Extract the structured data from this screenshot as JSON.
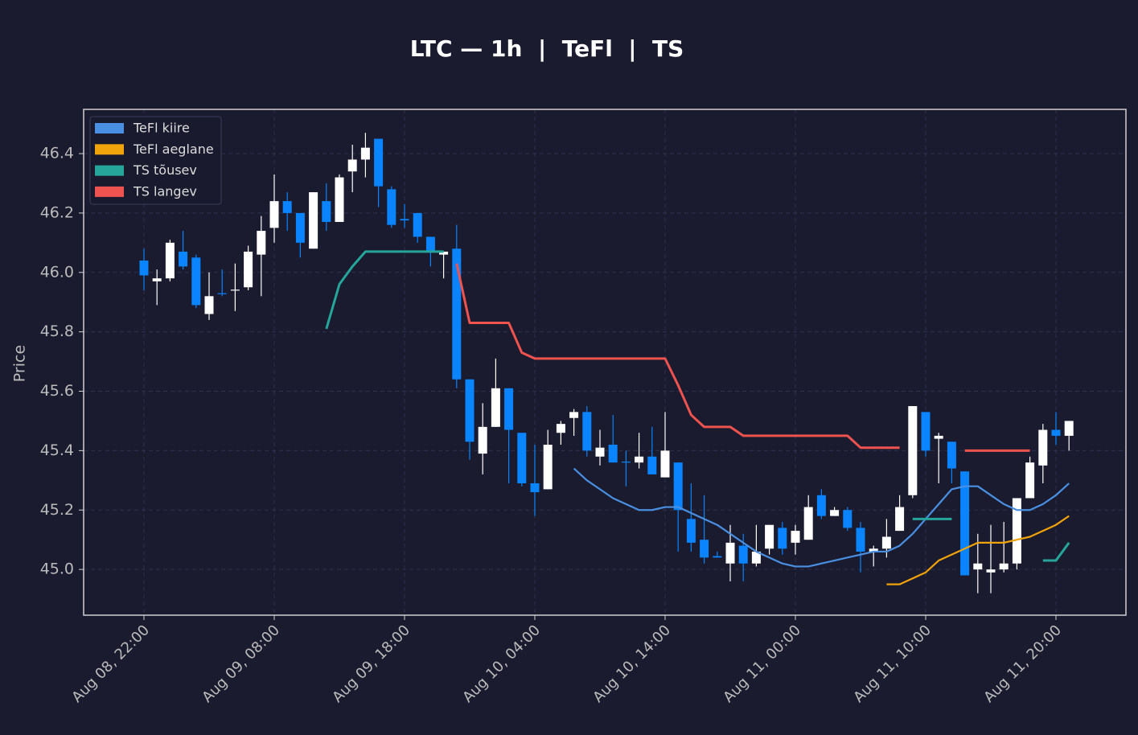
{
  "chart_data": {
    "type": "candlestick",
    "title": "LTC — 1h  |  TeFl  |  TS",
    "ylabel": "Price",
    "x": [
      "Aug 08, 22:00",
      "Aug 08, 23:00",
      "Aug 09, 00:00",
      "Aug 09, 01:00",
      "Aug 09, 02:00",
      "Aug 09, 03:00",
      "Aug 09, 04:00",
      "Aug 09, 05:00",
      "Aug 09, 06:00",
      "Aug 09, 07:00",
      "Aug 09, 08:00",
      "Aug 09, 09:00",
      "Aug 09, 10:00",
      "Aug 09, 11:00",
      "Aug 09, 12:00",
      "Aug 09, 13:00",
      "Aug 09, 14:00",
      "Aug 09, 15:00",
      "Aug 09, 16:00",
      "Aug 09, 17:00",
      "Aug 09, 18:00",
      "Aug 09, 19:00",
      "Aug 09, 20:00",
      "Aug 09, 21:00",
      "Aug 09, 22:00",
      "Aug 09, 23:00",
      "Aug 10, 00:00",
      "Aug 10, 01:00",
      "Aug 10, 02:00",
      "Aug 10, 03:00",
      "Aug 10, 04:00",
      "Aug 10, 05:00",
      "Aug 10, 06:00",
      "Aug 10, 07:00",
      "Aug 10, 08:00",
      "Aug 10, 09:00",
      "Aug 10, 10:00",
      "Aug 10, 11:00",
      "Aug 10, 12:00",
      "Aug 10, 13:00",
      "Aug 10, 14:00",
      "Aug 10, 15:00",
      "Aug 10, 16:00",
      "Aug 10, 17:00",
      "Aug 10, 18:00",
      "Aug 10, 19:00",
      "Aug 10, 20:00",
      "Aug 10, 21:00",
      "Aug 10, 22:00",
      "Aug 10, 23:00",
      "Aug 11, 00:00",
      "Aug 11, 01:00",
      "Aug 11, 02:00",
      "Aug 11, 03:00",
      "Aug 11, 04:00",
      "Aug 11, 05:00",
      "Aug 11, 06:00",
      "Aug 11, 07:00",
      "Aug 11, 08:00",
      "Aug 11, 09:00",
      "Aug 11, 10:00",
      "Aug 11, 11:00",
      "Aug 11, 12:00",
      "Aug 11, 13:00",
      "Aug 11, 14:00",
      "Aug 11, 15:00",
      "Aug 11, 16:00",
      "Aug 11, 17:00",
      "Aug 11, 18:00",
      "Aug 11, 19:00",
      "Aug 11, 20:00",
      "Aug 11, 21:00"
    ],
    "open": [
      46.04,
      45.97,
      45.98,
      46.07,
      46.05,
      45.86,
      45.93,
      45.94,
      45.95,
      46.06,
      46.15,
      46.24,
      46.2,
      46.08,
      46.24,
      46.17,
      46.34,
      46.38,
      46.45,
      46.28,
      46.18,
      46.2,
      46.12,
      46.06,
      46.08,
      45.64,
      45.39,
      45.48,
      45.61,
      45.46,
      45.29,
      45.27,
      45.46,
      45.51,
      45.53,
      45.38,
      45.42,
      45.363,
      45.36,
      45.38,
      45.31,
      45.36,
      45.17,
      45.1,
      45.045,
      45.02,
      45.08,
      45.02,
      45.07,
      45.14,
      45.09,
      45.1,
      45.25,
      45.18,
      45.2,
      45.14,
      45.06,
      45.07,
      45.13,
      45.25,
      45.53,
      45.44,
      45.43,
      45.33,
      45.0,
      44.99,
      45.0,
      45.02,
      45.24,
      45.35,
      45.47,
      45.45
    ],
    "high": [
      46.08,
      46.01,
      46.11,
      46.14,
      46.06,
      46.0,
      46.01,
      46.03,
      46.09,
      46.19,
      46.33,
      46.27,
      46.2,
      46.27,
      46.3,
      46.33,
      46.43,
      46.47,
      46.45,
      46.29,
      46.23,
      46.2,
      46.12,
      46.07,
      46.16,
      45.64,
      45.56,
      45.71,
      45.61,
      45.46,
      45.42,
      45.47,
      45.5,
      45.54,
      45.55,
      45.47,
      45.52,
      45.4,
      45.46,
      45.48,
      45.53,
      45.36,
      45.29,
      45.25,
      45.06,
      45.15,
      45.12,
      45.15,
      45.15,
      45.16,
      45.15,
      45.25,
      45.27,
      45.21,
      45.21,
      45.16,
      45.08,
      45.17,
      45.25,
      45.55,
      45.53,
      45.46,
      45.43,
      45.33,
      45.12,
      45.15,
      45.16,
      45.24,
      45.38,
      45.49,
      45.53,
      45.5
    ],
    "low": [
      45.94,
      45.89,
      45.97,
      46.01,
      45.88,
      45.84,
      45.92,
      45.87,
      45.94,
      45.92,
      46.1,
      46.14,
      46.05,
      46.08,
      46.14,
      46.17,
      46.27,
      46.32,
      46.22,
      46.15,
      46.15,
      46.1,
      46.02,
      45.98,
      45.61,
      45.37,
      45.32,
      45.48,
      45.29,
      45.28,
      45.18,
      45.27,
      45.42,
      45.45,
      45.38,
      45.35,
      45.36,
      45.28,
      45.34,
      45.32,
      45.31,
      45.06,
      45.06,
      45.02,
      45.04,
      44.96,
      44.96,
      45.01,
      45.05,
      45.05,
      45.05,
      45.1,
      45.17,
      45.18,
      45.13,
      44.99,
      45.01,
      45.04,
      45.13,
      45.24,
      45.38,
      45.29,
      45.29,
      44.98,
      44.92,
      44.92,
      44.99,
      45.0,
      45.24,
      45.29,
      45.42,
      45.4
    ],
    "close": [
      45.99,
      45.98,
      46.1,
      46.02,
      45.89,
      45.92,
      45.928,
      45.942,
      46.07,
      46.14,
      46.24,
      46.2,
      46.1,
      46.27,
      46.17,
      46.32,
      46.38,
      46.42,
      46.29,
      46.16,
      46.175,
      46.12,
      46.07,
      46.07,
      45.64,
      45.43,
      45.48,
      45.61,
      45.47,
      45.29,
      45.26,
      45.42,
      45.49,
      45.53,
      45.4,
      45.41,
      45.36,
      45.36,
      45.38,
      45.32,
      45.4,
      45.2,
      45.09,
      45.04,
      45.04,
      45.09,
      45.02,
      45.06,
      45.15,
      45.07,
      45.13,
      45.21,
      45.18,
      45.2,
      45.14,
      45.06,
      45.07,
      45.11,
      45.21,
      45.55,
      45.4,
      45.45,
      45.34,
      44.98,
      45.02,
      45.0,
      45.02,
      45.24,
      45.36,
      45.47,
      45.45,
      45.5
    ],
    "up_color": "#ffffff",
    "down_color": "#0a84ff",
    "series": [
      {
        "name": "TeFl kiire",
        "color": "#4a90e2",
        "values": [
          null,
          null,
          null,
          null,
          null,
          null,
          null,
          null,
          null,
          null,
          null,
          null,
          null,
          null,
          null,
          null,
          null,
          null,
          null,
          null,
          null,
          null,
          null,
          null,
          null,
          null,
          null,
          null,
          null,
          null,
          null,
          null,
          null,
          45.34,
          45.3,
          45.27,
          45.24,
          45.22,
          45.2,
          45.2,
          45.21,
          45.21,
          45.19,
          45.17,
          45.15,
          45.12,
          45.09,
          45.06,
          45.04,
          45.02,
          45.01,
          45.01,
          45.02,
          45.03,
          45.04,
          45.05,
          45.06,
          45.06,
          45.08,
          45.12,
          45.17,
          45.22,
          45.27,
          45.28,
          45.28,
          45.25,
          45.22,
          45.2,
          45.2,
          45.22,
          45.25,
          45.29
        ]
      },
      {
        "name": "TeFl aeglane",
        "color": "#f0a30a",
        "values": [
          null,
          null,
          null,
          null,
          null,
          null,
          null,
          null,
          null,
          null,
          null,
          null,
          null,
          null,
          null,
          null,
          null,
          null,
          null,
          null,
          null,
          null,
          null,
          null,
          null,
          null,
          null,
          null,
          null,
          null,
          null,
          null,
          null,
          null,
          null,
          null,
          null,
          null,
          null,
          null,
          null,
          null,
          null,
          null,
          null,
          null,
          null,
          null,
          null,
          null,
          null,
          null,
          null,
          null,
          null,
          null,
          null,
          44.95,
          44.95,
          44.97,
          44.99,
          45.03,
          45.05,
          45.07,
          45.09,
          45.09,
          45.09,
          45.1,
          45.11,
          45.13,
          45.15,
          45.18
        ]
      },
      {
        "name": "TS tõusev",
        "color": "#26a69a",
        "values": [
          null,
          null,
          null,
          null,
          null,
          null,
          null,
          null,
          null,
          null,
          null,
          null,
          null,
          null,
          45.81,
          45.96,
          46.02,
          46.07,
          46.07,
          46.07,
          46.07,
          46.07,
          46.07,
          46.07,
          null,
          null,
          null,
          null,
          null,
          null,
          null,
          null,
          null,
          null,
          null,
          null,
          null,
          null,
          null,
          null,
          null,
          null,
          null,
          null,
          null,
          null,
          null,
          null,
          null,
          null,
          null,
          null,
          null,
          null,
          null,
          null,
          null,
          null,
          null,
          45.17,
          45.17,
          45.17,
          45.17,
          null,
          null,
          null,
          null,
          null,
          null,
          45.03,
          45.03,
          45.09
        ]
      },
      {
        "name": "TS langev",
        "color": "#ef5350",
        "values": [
          null,
          null,
          null,
          null,
          null,
          null,
          null,
          null,
          null,
          null,
          null,
          null,
          null,
          null,
          null,
          null,
          null,
          null,
          null,
          null,
          null,
          null,
          null,
          null,
          46.03,
          45.83,
          45.83,
          45.83,
          45.83,
          45.73,
          45.71,
          45.71,
          45.71,
          45.71,
          45.71,
          45.71,
          45.71,
          45.71,
          45.71,
          45.71,
          45.71,
          45.62,
          45.52,
          45.48,
          45.48,
          45.48,
          45.45,
          45.45,
          45.45,
          45.45,
          45.45,
          45.45,
          45.45,
          45.45,
          45.45,
          45.41,
          45.41,
          45.41,
          45.41,
          null,
          null,
          null,
          null,
          45.4,
          45.4,
          45.4,
          45.4,
          45.4,
          45.4,
          null,
          null,
          null
        ]
      }
    ],
    "ylim": [
      44.846,
      46.549
    ],
    "yticks": [
      {
        "value": 45,
        "label": "45.0"
      },
      45.2,
      45.4,
      45.6,
      45.8,
      {
        "value": 46,
        "label": "46.0"
      },
      46.2,
      46.4
    ],
    "xticks": [
      "Aug 08, 22:00",
      "Aug 09, 08:00",
      "Aug 09, 18:00",
      "Aug 10, 04:00",
      "Aug 10, 14:00",
      "Aug 11, 00:00",
      "Aug 11, 10:00",
      "Aug 11, 20:00"
    ],
    "grid": true,
    "legend": "upper left"
  }
}
